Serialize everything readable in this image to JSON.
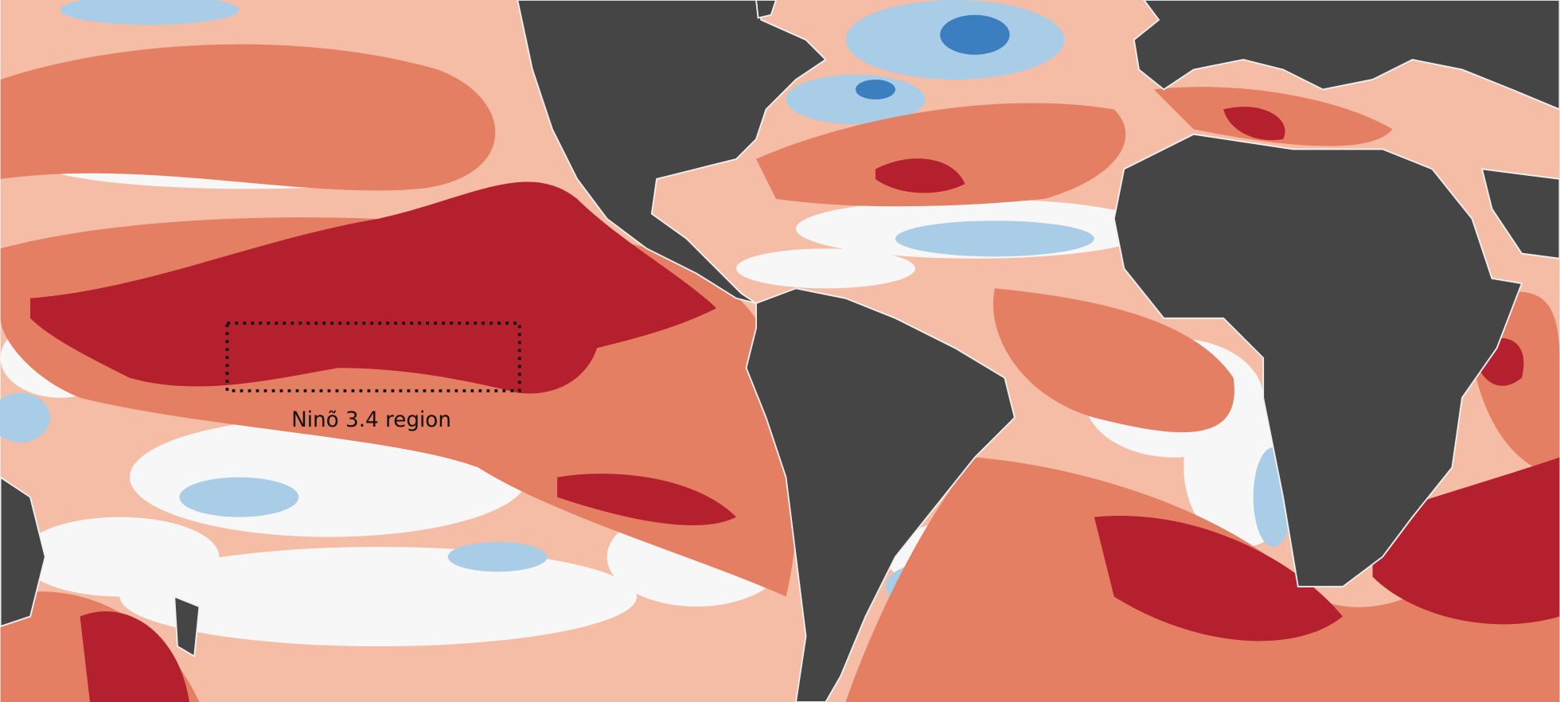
{
  "annotation": {
    "label": "Ninõ 3.4 region"
  }
}
